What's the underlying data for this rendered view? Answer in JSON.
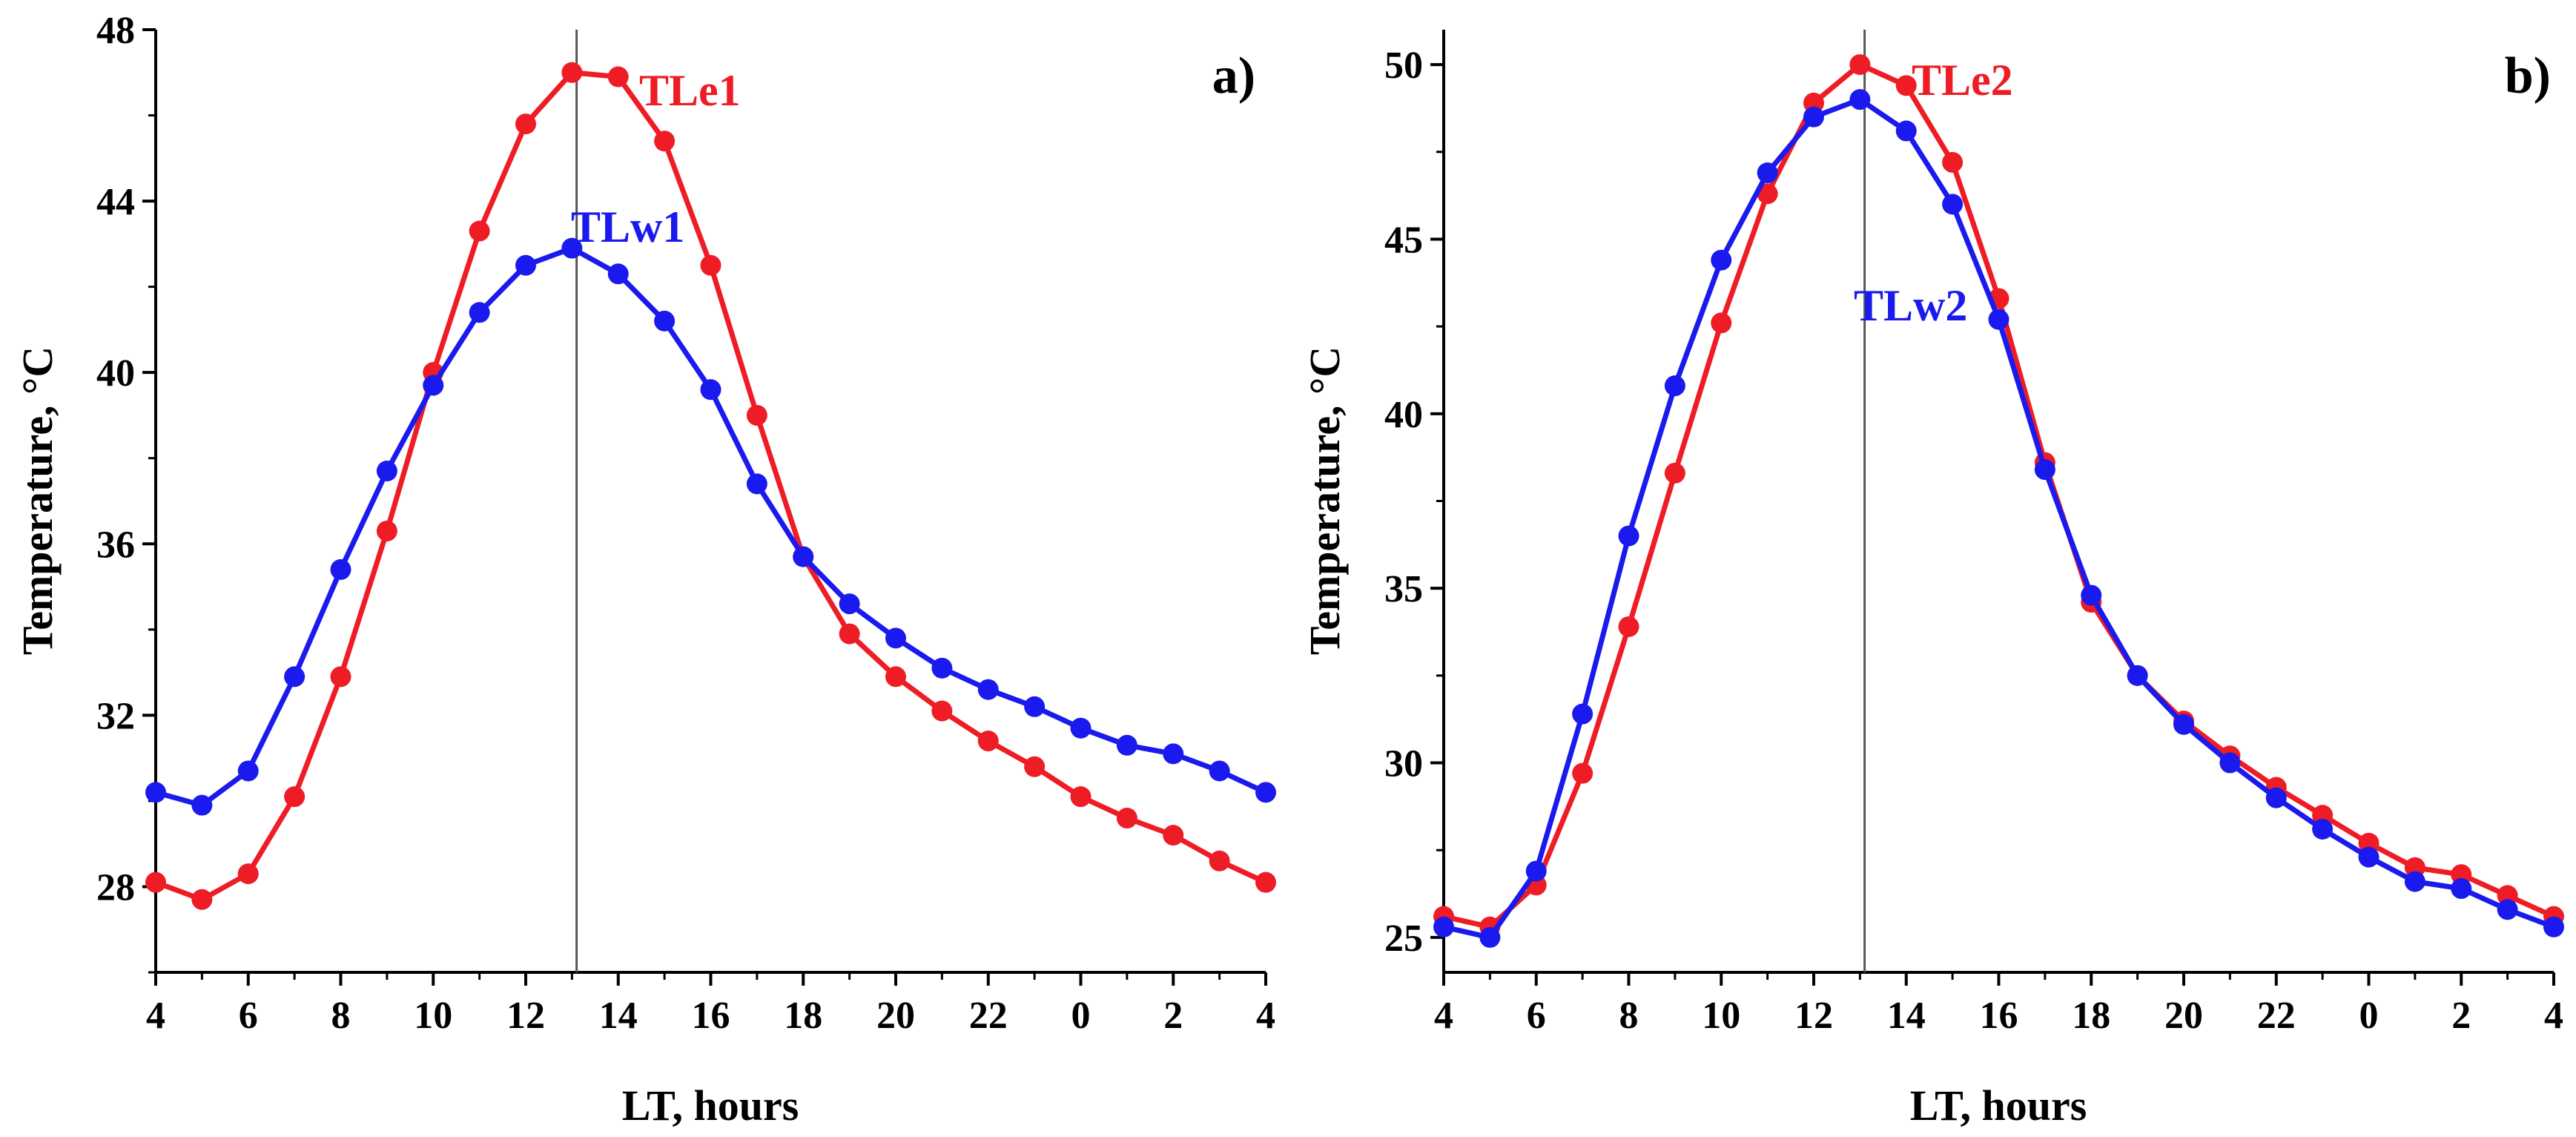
{
  "chart_data": [
    {
      "type": "line",
      "panel_label": "a)",
      "xlabel": "LT,  hours",
      "ylabel": "Temperature,  °C",
      "categories": [
        "4",
        "5",
        "6",
        "7",
        "8",
        "9",
        "10",
        "11",
        "12",
        "13",
        "14",
        "15",
        "16",
        "17",
        "18",
        "19",
        "20",
        "21",
        "22",
        "23",
        "0",
        "1",
        "2",
        "3",
        "4"
      ],
      "x_tick_labels": [
        "4",
        "6",
        "8",
        "10",
        "12",
        "14",
        "16",
        "18",
        "20",
        "22",
        "0",
        "2",
        "4"
      ],
      "y_ticks": [
        28,
        32,
        36,
        40,
        44,
        48
      ],
      "ylim": [
        26,
        48
      ],
      "vline_at_index": 9.1,
      "series": [
        {
          "name": "TLe1",
          "color": "#ee1c24",
          "values": [
            28.1,
            27.7,
            28.3,
            30.1,
            32.9,
            36.3,
            40.0,
            43.3,
            45.8,
            47.0,
            46.9,
            45.4,
            42.5,
            39.0,
            35.7,
            33.9,
            32.9,
            32.1,
            31.4,
            30.8,
            30.1,
            29.6,
            29.2,
            28.6,
            28.1
          ],
          "label_text": "TLe1"
        },
        {
          "name": "TLw1",
          "color": "#1a1aee",
          "values": [
            30.2,
            29.9,
            30.7,
            32.9,
            35.4,
            37.7,
            39.7,
            41.4,
            42.5,
            42.9,
            42.3,
            41.2,
            39.6,
            37.4,
            35.7,
            34.6,
            33.8,
            33.1,
            32.6,
            32.2,
            31.7,
            31.3,
            31.1,
            30.7,
            30.2
          ],
          "label_text": "TLw1"
        }
      ]
    },
    {
      "type": "line",
      "panel_label": "b)",
      "xlabel": "LT,  hours",
      "ylabel": "Temperature,  °C",
      "categories": [
        "4",
        "5",
        "6",
        "7",
        "8",
        "9",
        "10",
        "11",
        "12",
        "13",
        "14",
        "15",
        "16",
        "17",
        "18",
        "19",
        "20",
        "21",
        "22",
        "23",
        "0",
        "1",
        "2",
        "3",
        "4"
      ],
      "x_tick_labels": [
        "4",
        "6",
        "8",
        "10",
        "12",
        "14",
        "16",
        "18",
        "20",
        "22",
        "0",
        "2",
        "4"
      ],
      "y_ticks": [
        25,
        30,
        35,
        40,
        45,
        50
      ],
      "ylim": [
        24.0,
        51.0
      ],
      "vline_at_index": 9.1,
      "series": [
        {
          "name": "TLe2",
          "color": "#ee1c24",
          "values": [
            25.6,
            25.3,
            26.5,
            29.7,
            33.9,
            38.3,
            42.6,
            46.3,
            48.9,
            50.0,
            49.4,
            47.2,
            43.3,
            38.6,
            34.6,
            32.5,
            31.2,
            30.2,
            29.3,
            28.5,
            27.7,
            27.0,
            26.8,
            26.2,
            25.6
          ],
          "label_text": "TLe2"
        },
        {
          "name": "TLw2",
          "color": "#1a1aee",
          "values": [
            25.3,
            25.0,
            26.9,
            31.4,
            36.5,
            40.8,
            44.4,
            46.9,
            48.5,
            49.0,
            48.1,
            46.0,
            42.7,
            38.4,
            34.8,
            32.5,
            31.1,
            30.0,
            29.0,
            28.1,
            27.3,
            26.6,
            26.4,
            25.8,
            25.3
          ],
          "label_text": "TLw2"
        }
      ]
    }
  ]
}
